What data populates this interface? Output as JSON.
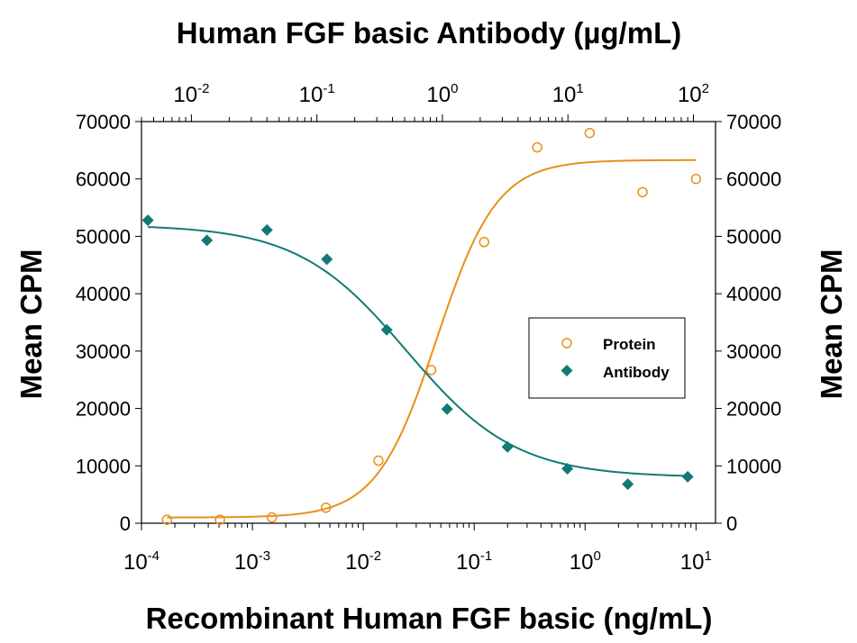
{
  "chart_data": {
    "type": "scatter",
    "title": "Human FGF basic Antibody (µg/mL)",
    "xlabel": "Recombinant Human FGF basic (ng/mL)",
    "ylabel_left": "Mean CPM",
    "ylabel_right": "Mean CPM",
    "x_scale": "log",
    "xlim": [
      0.0001,
      15
    ],
    "x_top_scale": "log",
    "x_top_lim": [
      0.004,
      150
    ],
    "ylim": [
      0,
      70000
    ],
    "y_ticks": [
      "0",
      "10000",
      "20000",
      "30000",
      "40000",
      "50000",
      "60000",
      "70000"
    ],
    "x_bottom_ticks": [
      {
        "base": "10",
        "exp": "-4"
      },
      {
        "base": "10",
        "exp": "-3"
      },
      {
        "base": "10",
        "exp": "-2"
      },
      {
        "base": "10",
        "exp": "-1"
      },
      {
        "base": "10",
        "exp": "0"
      },
      {
        "base": "10",
        "exp": "1"
      }
    ],
    "x_top_ticks": [
      {
        "base": "10",
        "exp": "-2"
      },
      {
        "base": "10",
        "exp": "-1"
      },
      {
        "base": "10",
        "exp": "0"
      },
      {
        "base": "10",
        "exp": "1"
      },
      {
        "base": "10",
        "exp": "2"
      }
    ],
    "grid": false,
    "legend_position": "right-middle",
    "series": [
      {
        "name": "Protein",
        "axis": "bottom",
        "marker": "open-circle",
        "color": "#E8901A",
        "points": [
          {
            "x": 0.00017,
            "y": 600
          },
          {
            "x": 0.00051,
            "y": 600
          },
          {
            "x": 0.0015,
            "y": 1000
          },
          {
            "x": 0.0046,
            "y": 2700
          },
          {
            "x": 0.0137,
            "y": 10900
          },
          {
            "x": 0.041,
            "y": 26700
          },
          {
            "x": 0.123,
            "y": 49000
          },
          {
            "x": 0.37,
            "y": 65500
          },
          {
            "x": 1.1,
            "y": 68000
          },
          {
            "x": 3.3,
            "y": 57700
          },
          {
            "x": 10,
            "y": 60000
          }
        ],
        "fit": {
          "bottom": 1000,
          "top": 63300,
          "ec50": 0.046,
          "hill": 1.6
        }
      },
      {
        "name": "Antibody",
        "axis": "top",
        "marker": "filled-diamond",
        "color": "#127A74",
        "points": [
          {
            "x": 0.0045,
            "y": 52800
          },
          {
            "x": 0.0133,
            "y": 49300
          },
          {
            "x": 0.04,
            "y": 51100
          },
          {
            "x": 0.12,
            "y": 46000
          },
          {
            "x": 0.36,
            "y": 33700
          },
          {
            "x": 1.09,
            "y": 19900
          },
          {
            "x": 3.3,
            "y": 13300
          },
          {
            "x": 9.9,
            "y": 9500
          },
          {
            "x": 30,
            "y": 6800
          },
          {
            "x": 90,
            "y": 8100
          }
        ],
        "fit": {
          "top": 52000,
          "bottom": 8000,
          "ec50": 0.52,
          "hill": 1.0
        }
      }
    ],
    "legend": [
      {
        "label": "Protein",
        "marker": "open-circle",
        "color": "#E8901A"
      },
      {
        "label": "Antibody",
        "marker": "filled-diamond",
        "color": "#127A74"
      }
    ]
  }
}
